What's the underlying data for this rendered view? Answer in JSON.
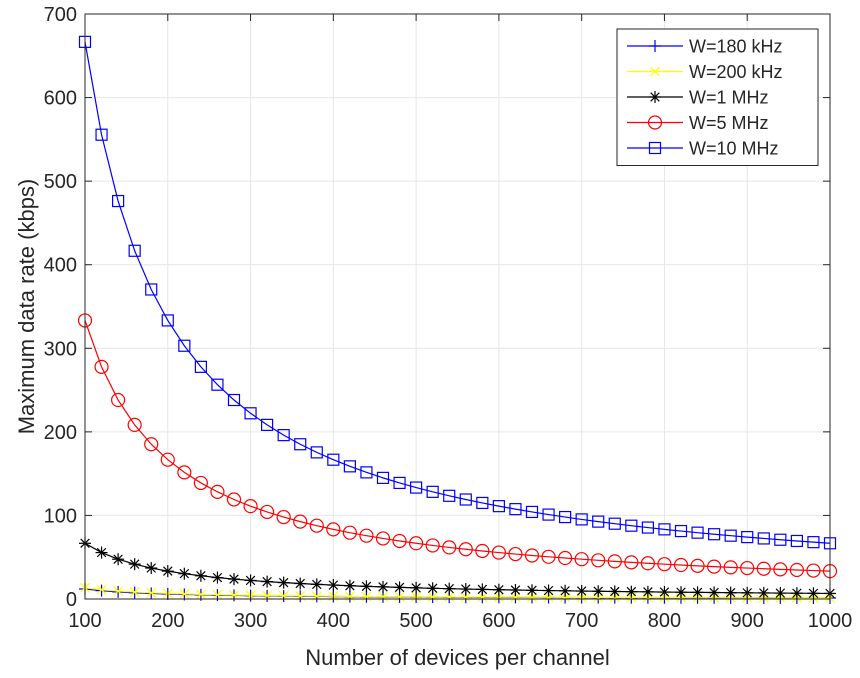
{
  "chart_data": {
    "type": "line",
    "title": "",
    "xlabel": "Number of devices per channel",
    "ylabel": "Maximum data rate (kbps)",
    "xlim": [
      100,
      1000
    ],
    "ylim": [
      0,
      700
    ],
    "xticks": [
      100,
      200,
      300,
      400,
      500,
      600,
      700,
      800,
      900,
      1000
    ],
    "yticks": [
      0,
      100,
      200,
      300,
      400,
      500,
      600,
      700
    ],
    "xtick_labels": [
      "100",
      "200",
      "300",
      "400",
      "500",
      "600",
      "700",
      "800",
      "900",
      "1000"
    ],
    "ytick_labels": [
      "0",
      "100",
      "200",
      "300",
      "400",
      "500",
      "600",
      "700"
    ],
    "grid": true,
    "legend_position": "top-right",
    "x": [
      100,
      120,
      140,
      160,
      180,
      200,
      220,
      240,
      260,
      280,
      300,
      320,
      340,
      360,
      380,
      400,
      420,
      440,
      460,
      480,
      500,
      520,
      540,
      560,
      580,
      600,
      620,
      640,
      660,
      680,
      700,
      720,
      740,
      760,
      780,
      800,
      820,
      840,
      860,
      880,
      900,
      920,
      940,
      960,
      980,
      1000
    ],
    "series": [
      {
        "name": "W=180 kHz",
        "color": "#0000ff",
        "marker": "plus",
        "values": [
          12.0,
          10.0,
          8.57,
          7.5,
          6.67,
          6.0,
          5.45,
          5.0,
          4.62,
          4.29,
          4.0,
          3.75,
          3.53,
          3.33,
          3.16,
          3.0,
          2.86,
          2.73,
          2.61,
          2.5,
          2.4,
          2.31,
          2.22,
          2.14,
          2.07,
          2.0,
          1.94,
          1.88,
          1.82,
          1.76,
          1.71,
          1.67,
          1.62,
          1.58,
          1.54,
          1.5,
          1.46,
          1.43,
          1.4,
          1.36,
          1.33,
          1.3,
          1.28,
          1.25,
          1.22,
          1.2
        ]
      },
      {
        "name": "W=200 kHz",
        "color": "#ffff00",
        "marker": "x",
        "values": [
          13.33,
          11.11,
          9.52,
          8.33,
          7.41,
          6.67,
          6.06,
          5.56,
          5.13,
          4.76,
          4.44,
          4.17,
          3.92,
          3.7,
          3.51,
          3.33,
          3.17,
          3.03,
          2.9,
          2.78,
          2.67,
          2.56,
          2.47,
          2.38,
          2.3,
          2.22,
          2.15,
          2.08,
          2.02,
          1.96,
          1.9,
          1.85,
          1.8,
          1.75,
          1.71,
          1.67,
          1.63,
          1.59,
          1.55,
          1.52,
          1.48,
          1.45,
          1.42,
          1.39,
          1.36,
          1.33
        ]
      },
      {
        "name": "W=1 MHz",
        "color": "#000000",
        "marker": "asterisk",
        "values": [
          66.67,
          55.56,
          47.62,
          41.67,
          37.04,
          33.33,
          30.3,
          27.78,
          25.64,
          23.81,
          22.22,
          20.83,
          19.61,
          18.52,
          17.54,
          16.67,
          15.87,
          15.15,
          14.49,
          13.89,
          13.33,
          12.82,
          12.35,
          11.9,
          11.49,
          11.11,
          10.75,
          10.42,
          10.1,
          9.8,
          9.52,
          9.26,
          9.01,
          8.77,
          8.55,
          8.33,
          8.13,
          7.94,
          7.75,
          7.58,
          7.41,
          7.25,
          7.09,
          6.94,
          6.8,
          6.67
        ]
      },
      {
        "name": "W=5 MHz",
        "color": "#ff0000",
        "marker": "circle",
        "values": [
          333.33,
          277.78,
          238.1,
          208.33,
          185.19,
          166.67,
          151.52,
          138.89,
          128.21,
          119.05,
          111.11,
          104.17,
          98.04,
          92.59,
          87.72,
          83.33,
          79.37,
          75.76,
          72.46,
          69.44,
          66.67,
          64.1,
          61.73,
          59.52,
          57.47,
          55.56,
          53.76,
          52.08,
          50.51,
          49.02,
          47.62,
          46.3,
          45.05,
          43.86,
          42.74,
          41.67,
          40.65,
          39.68,
          38.76,
          37.88,
          37.04,
          36.23,
          35.46,
          34.72,
          34.01,
          33.33
        ]
      },
      {
        "name": "W=10 MHz",
        "color": "#0000ff",
        "marker": "square",
        "values": [
          666.67,
          555.56,
          476.19,
          416.67,
          370.37,
          333.33,
          303.03,
          277.78,
          256.41,
          238.1,
          222.22,
          208.33,
          196.08,
          185.19,
          175.44,
          166.67,
          158.73,
          151.52,
          144.93,
          138.89,
          133.33,
          128.21,
          123.46,
          119.05,
          114.94,
          111.11,
          107.53,
          104.17,
          101.01,
          98.04,
          95.24,
          92.59,
          90.09,
          87.72,
          85.47,
          83.33,
          81.3,
          79.37,
          77.52,
          75.76,
          74.07,
          72.46,
          70.92,
          69.44,
          68.03,
          66.67
        ]
      }
    ]
  }
}
